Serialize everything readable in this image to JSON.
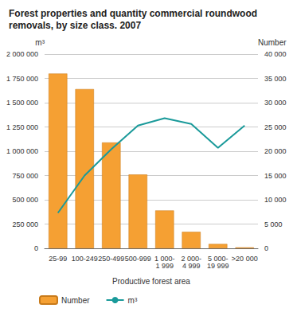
{
  "chart_data": {
    "type": "bar",
    "title": "Forest properties and quantity commercial roundwood removals, by size class. 2007",
    "x_label": "Productive forest area",
    "y_label": "m³",
    "y2_label": "Number",
    "categories": [
      "25-99",
      "100-249",
      "250-499",
      "500-999",
      "1 000-1 999",
      "2 000-4 999",
      "5 000-19 999",
      ">20 000"
    ],
    "series": [
      {
        "name": "Number",
        "type": "bar",
        "axis": "y2",
        "color": "#f5a033",
        "values": [
          36000,
          32800,
          21800,
          15200,
          7800,
          3400,
          900,
          200
        ]
      },
      {
        "name": "m³",
        "type": "line",
        "color": "#1a9a9a",
        "values": [
          365000,
          750000,
          1020000,
          1265000,
          1340000,
          1280000,
          1035000,
          1265000
        ]
      }
    ],
    "ylim": [
      0,
      2000000
    ],
    "yticks": [
      {
        "value": 0,
        "label": "0"
      },
      {
        "value": 250000,
        "label": "250 000"
      },
      {
        "value": 500000,
        "label": "500 000"
      },
      {
        "value": 750000,
        "label": "750 000"
      },
      {
        "value": 1000000,
        "label": "1 000 000"
      },
      {
        "value": 1250000,
        "label": "1 250 000"
      },
      {
        "value": 1500000,
        "label": "1 500 000"
      },
      {
        "value": 1750000,
        "label": "1 750 000"
      },
      {
        "value": 2000000,
        "label": "2 000 000"
      }
    ],
    "y2lim": [
      0,
      40000
    ],
    "y2ticks": [
      {
        "value": 0,
        "label": "0"
      },
      {
        "value": 5000,
        "label": "5 000"
      },
      {
        "value": 10000,
        "label": "10 000"
      },
      {
        "value": 15000,
        "label": "15 000"
      },
      {
        "value": 20000,
        "label": "20 000"
      },
      {
        "value": 25000,
        "label": "25 000"
      },
      {
        "value": 30000,
        "label": "30 000"
      },
      {
        "value": 35000,
        "label": "35 000"
      },
      {
        "value": 40000,
        "label": "40 000"
      }
    ],
    "grid": true,
    "legend": "lower left"
  }
}
